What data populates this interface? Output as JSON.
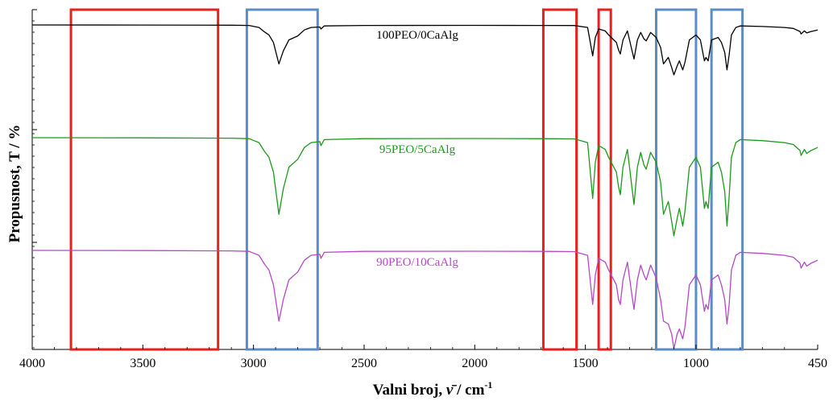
{
  "chart_data": {
    "type": "line",
    "title": "",
    "xlabel": "Valni broj, ν̄ / cm⁻¹",
    "xlabel_parts": {
      "main": "Valni broj, ",
      "symbol": "ν̄",
      "unit": " / cm",
      "sup": "-1"
    },
    "ylabel": "Propusnost, T / %",
    "xlim": [
      4000,
      450
    ],
    "x_reversed": true,
    "x_ticks": [
      4000,
      3500,
      3000,
      2500,
      2000,
      1500,
      1000,
      450
    ],
    "x_tick_labels": [
      "4000",
      "3500",
      "3000",
      "2500",
      "2000",
      "1500",
      "1000",
      "450"
    ],
    "y_tick_labels_visible": false,
    "grid": false,
    "legend": "none",
    "series": [
      {
        "name": "100PEO/0CaAlg",
        "color": "#000000",
        "baseline": 0.0,
        "points": [
          [
            4000,
            0.0
          ],
          [
            3500,
            0.002
          ],
          [
            3100,
            0.005
          ],
          [
            3020,
            0.01
          ],
          [
            2975,
            0.05
          ],
          [
            2950,
            0.14
          ],
          [
            2930,
            0.2
          ],
          [
            2910,
            0.35
          ],
          [
            2885,
            0.78
          ],
          [
            2865,
            0.52
          ],
          [
            2840,
            0.3
          ],
          [
            2800,
            0.22
          ],
          [
            2770,
            0.1
          ],
          [
            2740,
            0.05
          ],
          [
            2700,
            0.04
          ],
          [
            2695,
            0.08
          ],
          [
            2680,
            0.02
          ],
          [
            2500,
            0.01
          ],
          [
            2000,
            0.008
          ],
          [
            1700,
            0.01
          ],
          [
            1550,
            0.012
          ],
          [
            1490,
            0.05
          ],
          [
            1467,
            0.62
          ],
          [
            1455,
            0.25
          ],
          [
            1440,
            0.08
          ],
          [
            1410,
            0.12
          ],
          [
            1395,
            0.2
          ],
          [
            1360,
            0.35
          ],
          [
            1350,
            0.5
          ],
          [
            1342,
            0.58
          ],
          [
            1330,
            0.3
          ],
          [
            1310,
            0.12
          ],
          [
            1290,
            0.5
          ],
          [
            1280,
            0.68
          ],
          [
            1265,
            0.3
          ],
          [
            1250,
            0.15
          ],
          [
            1235,
            0.28
          ],
          [
            1225,
            0.32
          ],
          [
            1205,
            0.15
          ],
          [
            1180,
            0.25
          ],
          [
            1160,
            0.45
          ],
          [
            1147,
            0.78
          ],
          [
            1125,
            0.65
          ],
          [
            1110,
            0.85
          ],
          [
            1100,
            1.0
          ],
          [
            1085,
            0.82
          ],
          [
            1075,
            0.72
          ],
          [
            1060,
            0.9
          ],
          [
            1050,
            0.75
          ],
          [
            1030,
            0.3
          ],
          [
            1000,
            0.2
          ],
          [
            980,
            0.3
          ],
          [
            962,
            0.72
          ],
          [
            955,
            0.65
          ],
          [
            945,
            0.72
          ],
          [
            930,
            0.3
          ],
          [
            900,
            0.25
          ],
          [
            885,
            0.35
          ],
          [
            870,
            0.55
          ],
          [
            860,
            0.9
          ],
          [
            850,
            0.6
          ],
          [
            840,
            0.2
          ],
          [
            820,
            0.05
          ],
          [
            800,
            0.02
          ],
          [
            700,
            0.03
          ],
          [
            600,
            0.05
          ],
          [
            560,
            0.07
          ],
          [
            530,
            0.13
          ],
          [
            525,
            0.18
          ],
          [
            510,
            0.12
          ],
          [
            500,
            0.16
          ],
          [
            480,
            0.13
          ],
          [
            450,
            0.1
          ]
        ]
      },
      {
        "name": "95PEO/5CaAlg",
        "color": "#1b9a1b",
        "baseline": 0.0,
        "points": [
          [
            4000,
            0.0
          ],
          [
            3500,
            0.002
          ],
          [
            3100,
            0.005
          ],
          [
            3020,
            0.01
          ],
          [
            2975,
            0.05
          ],
          [
            2950,
            0.14
          ],
          [
            2930,
            0.2
          ],
          [
            2910,
            0.35
          ],
          [
            2885,
            0.78
          ],
          [
            2865,
            0.52
          ],
          [
            2840,
            0.3
          ],
          [
            2800,
            0.22
          ],
          [
            2770,
            0.1
          ],
          [
            2740,
            0.05
          ],
          [
            2700,
            0.04
          ],
          [
            2695,
            0.08
          ],
          [
            2680,
            0.02
          ],
          [
            2500,
            0.01
          ],
          [
            2000,
            0.008
          ],
          [
            1700,
            0.01
          ],
          [
            1550,
            0.012
          ],
          [
            1490,
            0.05
          ],
          [
            1467,
            0.62
          ],
          [
            1455,
            0.25
          ],
          [
            1440,
            0.08
          ],
          [
            1410,
            0.12
          ],
          [
            1395,
            0.2
          ],
          [
            1360,
            0.35
          ],
          [
            1350,
            0.5
          ],
          [
            1342,
            0.58
          ],
          [
            1330,
            0.3
          ],
          [
            1310,
            0.12
          ],
          [
            1290,
            0.5
          ],
          [
            1280,
            0.68
          ],
          [
            1265,
            0.3
          ],
          [
            1250,
            0.15
          ],
          [
            1235,
            0.28
          ],
          [
            1225,
            0.32
          ],
          [
            1205,
            0.15
          ],
          [
            1180,
            0.25
          ],
          [
            1160,
            0.45
          ],
          [
            1147,
            0.78
          ],
          [
            1125,
            0.65
          ],
          [
            1110,
            0.85
          ],
          [
            1100,
            1.0
          ],
          [
            1085,
            0.82
          ],
          [
            1075,
            0.72
          ],
          [
            1060,
            0.9
          ],
          [
            1050,
            0.75
          ],
          [
            1030,
            0.3
          ],
          [
            1000,
            0.2
          ],
          [
            980,
            0.3
          ],
          [
            962,
            0.72
          ],
          [
            955,
            0.65
          ],
          [
            945,
            0.72
          ],
          [
            930,
            0.3
          ],
          [
            900,
            0.25
          ],
          [
            885,
            0.35
          ],
          [
            870,
            0.55
          ],
          [
            860,
            0.9
          ],
          [
            850,
            0.6
          ],
          [
            840,
            0.2
          ],
          [
            820,
            0.05
          ],
          [
            800,
            0.02
          ],
          [
            700,
            0.03
          ],
          [
            600,
            0.05
          ],
          [
            560,
            0.07
          ],
          [
            530,
            0.13
          ],
          [
            525,
            0.18
          ],
          [
            510,
            0.12
          ],
          [
            500,
            0.16
          ],
          [
            480,
            0.13
          ],
          [
            450,
            0.1
          ]
        ]
      },
      {
        "name": "90PEO/10CaAlg",
        "color": "#b548c8",
        "baseline": 0.0,
        "points": [
          [
            4000,
            0.0
          ],
          [
            3500,
            0.002
          ],
          [
            3100,
            0.005
          ],
          [
            3020,
            0.01
          ],
          [
            2975,
            0.05
          ],
          [
            2950,
            0.14
          ],
          [
            2930,
            0.2
          ],
          [
            2910,
            0.35
          ],
          [
            2885,
            0.72
          ],
          [
            2865,
            0.5
          ],
          [
            2840,
            0.3
          ],
          [
            2800,
            0.22
          ],
          [
            2770,
            0.1
          ],
          [
            2740,
            0.05
          ],
          [
            2700,
            0.04
          ],
          [
            2695,
            0.08
          ],
          [
            2680,
            0.02
          ],
          [
            2500,
            0.01
          ],
          [
            2000,
            0.008
          ],
          [
            1700,
            0.01
          ],
          [
            1550,
            0.012
          ],
          [
            1490,
            0.05
          ],
          [
            1467,
            0.55
          ],
          [
            1455,
            0.25
          ],
          [
            1440,
            0.08
          ],
          [
            1410,
            0.12
          ],
          [
            1395,
            0.2
          ],
          [
            1360,
            0.35
          ],
          [
            1350,
            0.5
          ],
          [
            1342,
            0.55
          ],
          [
            1330,
            0.3
          ],
          [
            1310,
            0.12
          ],
          [
            1290,
            0.45
          ],
          [
            1280,
            0.6
          ],
          [
            1265,
            0.3
          ],
          [
            1250,
            0.15
          ],
          [
            1235,
            0.25
          ],
          [
            1225,
            0.3
          ],
          [
            1205,
            0.15
          ],
          [
            1180,
            0.28
          ],
          [
            1160,
            0.5
          ],
          [
            1147,
            0.72
          ],
          [
            1125,
            0.75
          ],
          [
            1110,
            0.85
          ],
          [
            1100,
            1.0
          ],
          [
            1085,
            0.85
          ],
          [
            1075,
            0.8
          ],
          [
            1060,
            0.9
          ],
          [
            1050,
            0.78
          ],
          [
            1030,
            0.35
          ],
          [
            1000,
            0.25
          ],
          [
            980,
            0.35
          ],
          [
            962,
            0.62
          ],
          [
            955,
            0.55
          ],
          [
            945,
            0.6
          ],
          [
            930,
            0.3
          ],
          [
            900,
            0.25
          ],
          [
            885,
            0.35
          ],
          [
            870,
            0.5
          ],
          [
            860,
            0.75
          ],
          [
            850,
            0.55
          ],
          [
            840,
            0.2
          ],
          [
            820,
            0.05
          ],
          [
            800,
            0.02
          ],
          [
            700,
            0.03
          ],
          [
            600,
            0.05
          ],
          [
            560,
            0.07
          ],
          [
            530,
            0.13
          ],
          [
            525,
            0.18
          ],
          [
            510,
            0.12
          ],
          [
            500,
            0.16
          ],
          [
            480,
            0.13
          ],
          [
            450,
            0.1
          ]
        ]
      }
    ],
    "highlight_boxes": [
      {
        "color": "#e8201c",
        "x_range": [
          3825,
          3160
        ]
      },
      {
        "color": "#5b8cc6",
        "x_range": [
          3030,
          2710
        ]
      },
      {
        "color": "#e8201c",
        "x_range": [
          1690,
          1540
        ]
      },
      {
        "color": "#e8201c",
        "x_range": [
          1440,
          1385
        ]
      },
      {
        "color": "#5b8cc6",
        "x_range": [
          1180,
          1000
        ]
      },
      {
        "color": "#5b8cc6",
        "x_range": [
          930,
          790
        ]
      }
    ]
  }
}
